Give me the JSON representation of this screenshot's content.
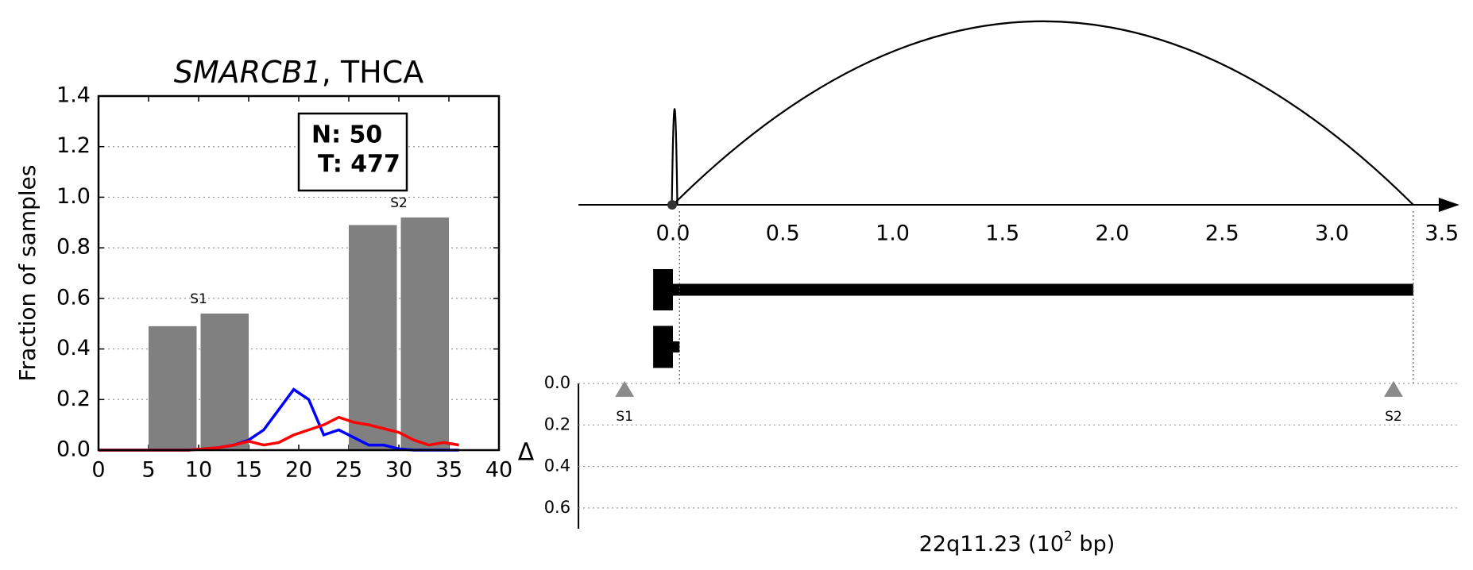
{
  "chart_data": [
    {
      "type": "bar",
      "title_italic": "SMARCB1",
      "title": ", THCA",
      "ylabel": "Fraction of samples",
      "xlim": [
        0,
        40
      ],
      "xticks": [
        0,
        5,
        10,
        15,
        20,
        25,
        30,
        35,
        40
      ],
      "ylim": [
        0,
        1.4
      ],
      "yticks": [
        {
          "value": 0,
          "label": "0.0"
        },
        0.2,
        0.4,
        0.6,
        0.8,
        {
          "value": 1,
          "label": "1.0"
        },
        1.2,
        1.4
      ],
      "grid": true,
      "bars": {
        "color": "#808080",
        "x_start": [
          5,
          10.2,
          25,
          30.2
        ],
        "x_end": [
          9.8,
          15,
          29.8,
          35
        ],
        "values": [
          0.49,
          0.54,
          0.89,
          0.92
        ]
      },
      "annotations": [
        "S1",
        "S2"
      ],
      "legend": [
        "N: 50",
        "T: 477"
      ],
      "x": [
        0,
        1.5,
        3,
        4.5,
        6,
        7.5,
        9,
        10.5,
        12,
        13.5,
        15,
        16.5,
        18,
        19.5,
        21,
        22.5,
        24,
        25.5,
        27,
        28.5,
        30,
        31.5,
        33,
        34.5,
        36
      ],
      "series": [
        {
          "color": "#0000ff",
          "values": [
            0,
            0,
            0,
            0,
            0,
            0,
            0,
            0.005,
            0.01,
            0.02,
            0.04,
            0.08,
            0.16,
            0.24,
            0.2,
            0.06,
            0.08,
            0.05,
            0.02,
            0.02,
            0.005,
            0,
            0,
            0,
            0
          ]
        },
        {
          "color": "#ff0000",
          "values": [
            0,
            0,
            0,
            0,
            0,
            0,
            0,
            0.005,
            0.01,
            0.02,
            0.035,
            0.02,
            0.03,
            0.06,
            0.08,
            0.1,
            0.13,
            0.11,
            0.1,
            0.085,
            0.07,
            0.04,
            0.02,
            0.03,
            0.02
          ]
        }
      ]
    },
    {
      "type": "arc",
      "xlim": [
        -0.43,
        3.58
      ],
      "xticks": [
        {
          "value": 0,
          "label": "0.0"
        },
        0.5,
        {
          "value": 1,
          "label": "1.0"
        },
        1.5,
        {
          "value": 2,
          "label": "2.0"
        },
        2.5,
        {
          "value": 3,
          "label": "3.0"
        },
        3.5
      ],
      "arcs": [
        {
          "start": -0.005,
          "end": 0.02
        },
        {
          "start": 0,
          "end": 3.37
        }
      ],
      "tracks": [
        {
          "exon": [
            -0.09,
            0
          ],
          "end": 3.37
        },
        {
          "exon": [
            -0.09,
            0
          ],
          "end": 0.03
        }
      ],
      "delta": {
        "ylabel": "Δ",
        "ylim": [
          0,
          0.7
        ],
        "yticks": [
          {
            "value": 0,
            "label": "0.0"
          },
          0.2,
          0.4,
          0.6
        ],
        "grid": true,
        "markers": [
          {
            "label": "S1",
            "x": -0.22,
            "value": 0.03
          },
          {
            "label": "S2",
            "x": 3.28,
            "value": 0.03
          }
        ]
      },
      "xlabel": "22q11.23 (10",
      "xlabel_sup": "2",
      "xlabel_end": " bp)"
    }
  ]
}
